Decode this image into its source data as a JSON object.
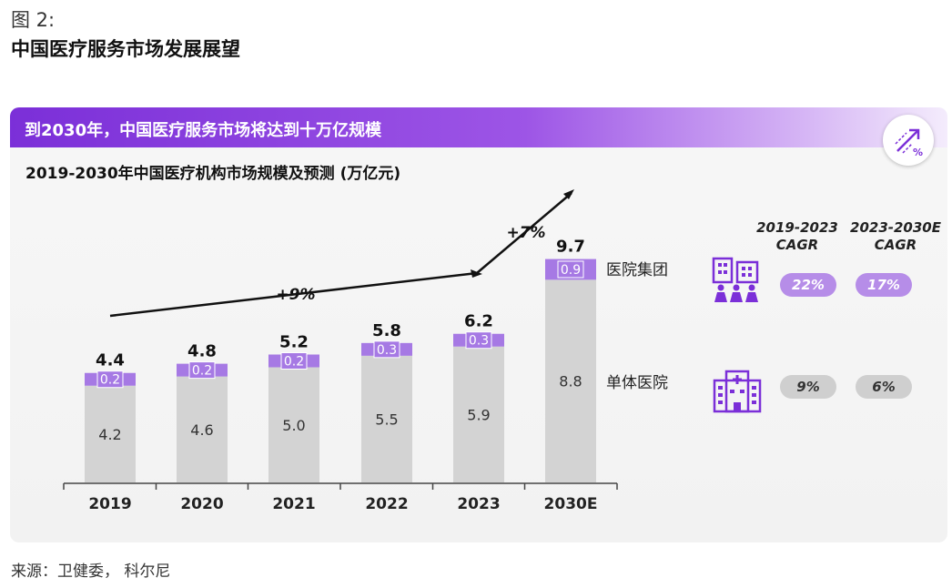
{
  "figure_label": "图 2:",
  "figure_title": "中国医疗服务市场发展展望",
  "banner_text": "到2030年，中国医疗服务市场将达到十万亿规模",
  "chart_title": "2019-2030年中国医疗机构市场规模及预测 (万亿元)",
  "cagr_headers": [
    {
      "line1": "2019-2023",
      "line2": "CAGR"
    },
    {
      "line1": "2023-2030E",
      "line2": "CAGR"
    }
  ],
  "legend": {
    "group": "医院集团",
    "single": "单体医院"
  },
  "cagr_values": {
    "group": [
      "22%",
      "17%"
    ],
    "single": [
      "9%",
      "6%"
    ]
  },
  "trend_labels": [
    "+9%",
    "+7%"
  ],
  "source": "来源：卫健委， 科尔尼",
  "colors": {
    "single_bar": "#d3d3d3",
    "group_bar": "#a679e4",
    "accent": "#7b2fd8"
  },
  "chart_data": {
    "type": "bar",
    "stacked": true,
    "title": "2019-2030年中国医疗机构市场规模及预测 (万亿元)",
    "categories": [
      "2019",
      "2020",
      "2021",
      "2022",
      "2023",
      "2030E"
    ],
    "series": [
      {
        "name": "单体医院",
        "values": [
          4.2,
          4.6,
          5.0,
          5.5,
          5.9,
          8.8
        ],
        "labels": [
          "4.2",
          "4.6",
          "5.0",
          "5.5",
          "5.9",
          "8.8"
        ]
      },
      {
        "name": "医院集团",
        "values": [
          0.2,
          0.2,
          0.2,
          0.3,
          0.3,
          0.9
        ],
        "labels": [
          "0.2",
          "0.2",
          "0.2",
          "0.3",
          "0.3",
          "0.9"
        ]
      }
    ],
    "totals": [
      4.4,
      4.8,
      5.2,
      5.8,
      6.2,
      9.7
    ],
    "total_labels": [
      "4.4",
      "4.8",
      "5.2",
      "5.8",
      "6.2",
      "9.7"
    ],
    "ylim": [
      0,
      10
    ],
    "xlabel": "",
    "ylabel": ""
  }
}
